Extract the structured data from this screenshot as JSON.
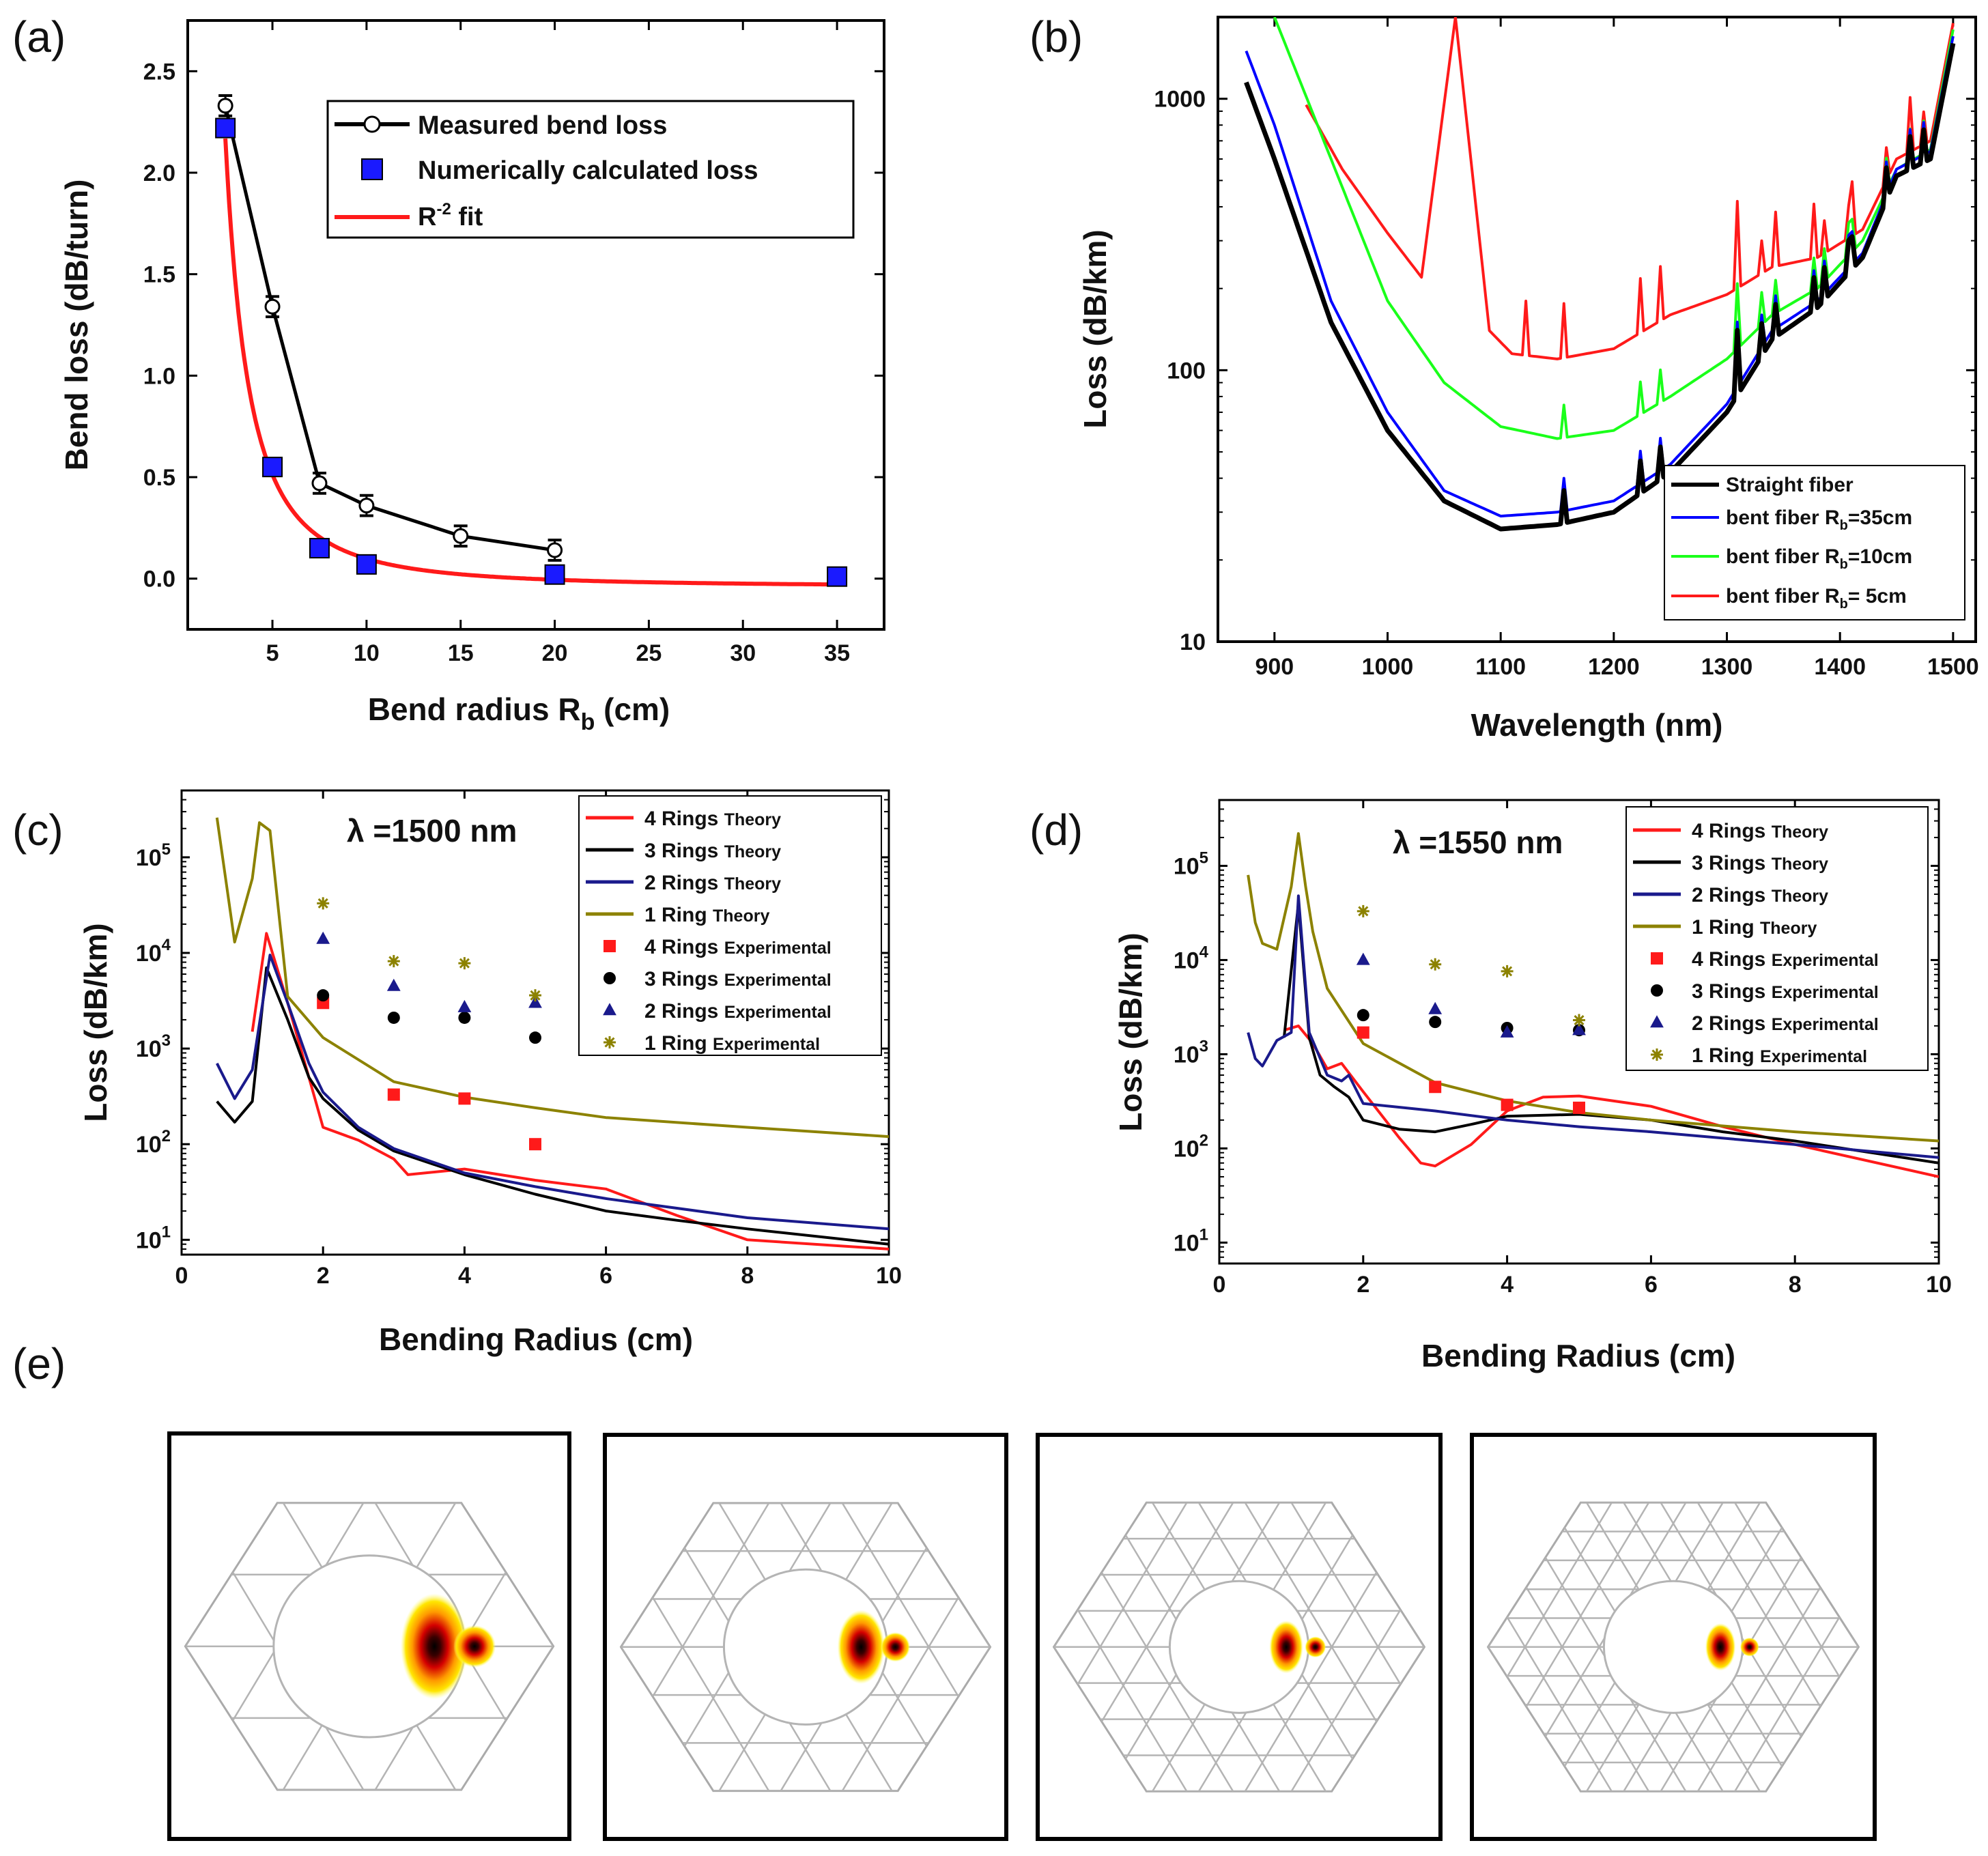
{
  "panel_labels": [
    "(a)",
    "(b)",
    "(c)",
    "(d)",
    "(e)"
  ],
  "colors": {
    "black": "#000000",
    "blue": "#0000ff",
    "red": "#ff1a1a",
    "green": "#1aff1a",
    "navy": "#1a1a8c",
    "olive": "#8c8200",
    "sq_blue": "#1a1aff"
  },
  "chart_data": [
    {
      "id": "a",
      "type": "line",
      "xlabel": "Bend radius R",
      "xlabel_sub": "b",
      "xlabel_unit": " (cm)",
      "ylabel": "Bend loss (dB/turn)",
      "xlim": [
        0.5,
        37.5
      ],
      "ylim": [
        -0.25,
        2.75
      ],
      "xticks": [
        5,
        10,
        15,
        20,
        25,
        30,
        35
      ],
      "yticks": [
        0.0,
        0.5,
        1.0,
        1.5,
        2.0,
        2.5
      ],
      "ytick_labels": [
        "0.0",
        "0.5",
        "1.0",
        "1.5",
        "2.0",
        "2.5"
      ],
      "legend": [
        {
          "label": "Measured bend loss",
          "kind": "line-marker"
        },
        {
          "label": "Numerically calculated loss",
          "kind": "square"
        },
        {
          "label": "R",
          "sup": "-2",
          "label_tail": " fit",
          "kind": "line"
        }
      ],
      "series": [
        {
          "name": "Measured bend loss",
          "x": [
            2.5,
            5,
            7.5,
            10,
            15,
            20
          ],
          "y": [
            2.33,
            1.34,
            0.47,
            0.36,
            0.21,
            0.14
          ],
          "err": [
            0.05,
            0.05,
            0.05,
            0.05,
            0.05,
            0.05
          ]
        },
        {
          "name": "Numerically calculated loss",
          "x": [
            2.5,
            5,
            7.5,
            10,
            20,
            35
          ],
          "y": [
            2.22,
            0.55,
            0.15,
            0.07,
            0.02,
            0.01
          ]
        },
        {
          "name": "R^-2 fit",
          "fn": "13.8/x^2 - 0.04",
          "x_range": [
            2.5,
            35
          ]
        }
      ]
    },
    {
      "id": "b",
      "type": "line",
      "yscale": "log",
      "xlabel": "Wavelength (nm)",
      "ylabel": "Loss (dB/km)",
      "xlim": [
        850,
        1520
      ],
      "ylim": [
        10,
        2000
      ],
      "xticks": [
        900,
        1000,
        1100,
        1200,
        1300,
        1400,
        1500
      ],
      "yticks": [
        10,
        100,
        1000
      ],
      "ytick_labels": [
        "10",
        "100",
        "1000"
      ],
      "legend": [
        {
          "label": "Straight fiber"
        },
        {
          "label": "bent fiber R",
          "sub": "b",
          "tail": "=35cm"
        },
        {
          "label": "bent fiber R",
          "sub": "b",
          "tail": "=10cm"
        },
        {
          "label": "bent fiber R",
          "sub": "b",
          "tail": "=  5cm"
        }
      ],
      "series": [
        {
          "name": "Straight fiber",
          "color_key": "black",
          "x": [
            875,
            900,
            950,
            1000,
            1050,
            1100,
            1150,
            1200,
            1250,
            1300,
            1340,
            1380,
            1420,
            1450,
            1480,
            1500
          ],
          "y": [
            1150,
            600,
            150,
            60,
            33,
            26,
            27,
            30,
            42,
            70,
            130,
            170,
            260,
            520,
            600,
            1600
          ]
        },
        {
          "name": "bent fiber Rb=35cm",
          "color_key": "blue",
          "x": [
            875,
            900,
            950,
            1000,
            1050,
            1100,
            1150,
            1200,
            1250,
            1300,
            1340,
            1380,
            1420,
            1450,
            1480,
            1500
          ],
          "y": [
            1500,
            800,
            180,
            70,
            36,
            29,
            30,
            33,
            45,
            75,
            140,
            180,
            270,
            550,
            640,
            1700
          ]
        },
        {
          "name": "bent fiber Rb=10cm",
          "color_key": "green",
          "x": [
            900,
            950,
            1000,
            1050,
            1100,
            1150,
            1200,
            1250,
            1300,
            1340,
            1380,
            1420,
            1450,
            1480,
            1500
          ],
          "y": [
            2000,
            600,
            180,
            90,
            62,
            56,
            60,
            80,
            110,
            160,
            200,
            300,
            550,
            650,
            1800
          ]
        },
        {
          "name": "bent fiber Rb=5cm",
          "color_key": "red",
          "x": [
            928,
            960,
            1000,
            1030,
            1060,
            1090,
            1110,
            1150,
            1200,
            1250,
            1300,
            1340,
            1380,
            1420,
            1450,
            1480,
            1500
          ],
          "y": [
            950,
            550,
            320,
            220,
            2000,
            140,
            115,
            110,
            120,
            160,
            190,
            240,
            260,
            330,
            600,
            700,
            1900
          ]
        }
      ]
    },
    {
      "id": "c",
      "type": "line",
      "yscale": "log",
      "xlabel": "Bending Radius (cm)",
      "ylabel": "Loss (dB/km)",
      "annotation": "λ =1500 nm",
      "xlim": [
        0,
        10
      ],
      "ylim": [
        7,
        500000
      ],
      "xticks": [
        0,
        2,
        4,
        6,
        8,
        10
      ],
      "yticks": [
        10,
        100,
        1000,
        10000,
        100000
      ],
      "ytick_exp": [
        "1",
        "2",
        "3",
        "4",
        "5"
      ],
      "legend": [
        {
          "label": "4 Rings",
          "small": "Theory",
          "kind": "line",
          "color_key": "red"
        },
        {
          "label": "3 Rings",
          "small": "Theory",
          "kind": "line",
          "color_key": "black"
        },
        {
          "label": "2 Rings",
          "small": "Theory",
          "kind": "line",
          "color_key": "navy"
        },
        {
          "label": "1 Ring",
          "small": "Theory",
          "kind": "line",
          "color_key": "olive"
        },
        {
          "label": "4 Rings",
          "small": "Experimental",
          "kind": "square",
          "color_key": "red"
        },
        {
          "label": "3 Rings",
          "small": "Experimental",
          "kind": "circle",
          "color_key": "black"
        },
        {
          "label": "2 Rings",
          "small": "Experimental",
          "kind": "triangle",
          "color_key": "navy"
        },
        {
          "label": "1 Ring ",
          "small": "Experimental",
          "kind": "star",
          "color_key": "olive"
        }
      ],
      "series": [
        {
          "name": "4 Rings Theory",
          "color_key": "red",
          "x": [
            1.0,
            1.2,
            1.5,
            1.8,
            2.0,
            2.5,
            3.0,
            3.2,
            4.0,
            5.0,
            6.0,
            7.0,
            8.0,
            10.0
          ],
          "y": [
            1500,
            16000,
            3000,
            500,
            150,
            110,
            70,
            48,
            55,
            42,
            34,
            18,
            10,
            8
          ]
        },
        {
          "name": "3 Rings Theory",
          "color_key": "black",
          "x": [
            0.5,
            0.75,
            1.0,
            1.2,
            1.5,
            1.8,
            2.0,
            2.5,
            3.0,
            4.0,
            5.0,
            6.0,
            7.0,
            8.0,
            10.0
          ],
          "y": [
            280,
            170,
            280,
            7000,
            2000,
            500,
            300,
            140,
            85,
            48,
            30,
            20,
            16,
            13,
            9
          ]
        },
        {
          "name": "2 Rings Theory",
          "color_key": "navy",
          "x": [
            0.5,
            0.75,
            1.0,
            1.25,
            1.5,
            1.8,
            2.0,
            2.5,
            3.0,
            4.0,
            5.0,
            6.0,
            8.0,
            10.0
          ],
          "y": [
            700,
            300,
            600,
            9500,
            3000,
            700,
            350,
            150,
            90,
            50,
            36,
            27,
            17,
            13
          ]
        },
        {
          "name": "1 Ring Theory",
          "color_key": "olive",
          "x": [
            0.5,
            0.75,
            1.0,
            1.1,
            1.25,
            1.5,
            2.0,
            3.0,
            4.0,
            5.0,
            6.0,
            8.0,
            10.0
          ],
          "y": [
            260000,
            13000,
            60000,
            230000,
            190000,
            3500,
            1300,
            450,
            310,
            240,
            190,
            150,
            120
          ]
        },
        {
          "name": "4 Rings Experimental",
          "color_key": "red",
          "marker": "square",
          "x": [
            2,
            3,
            4,
            5
          ],
          "y": [
            3000,
            330,
            300,
            100
          ]
        },
        {
          "name": "3 Rings Experimental",
          "color_key": "black",
          "marker": "circle",
          "x": [
            2,
            3,
            4,
            5
          ],
          "y": [
            3600,
            2100,
            2100,
            1300
          ]
        },
        {
          "name": "2 Rings Experimental",
          "color_key": "navy",
          "marker": "triangle",
          "x": [
            2,
            3,
            4,
            5
          ],
          "y": [
            14000,
            4500,
            2700,
            3000
          ]
        },
        {
          "name": "1 Ring Experimental",
          "color_key": "olive",
          "marker": "star",
          "x": [
            2,
            3,
            4,
            5
          ],
          "y": [
            33000,
            8200,
            7800,
            3600
          ]
        }
      ]
    },
    {
      "id": "d",
      "type": "line",
      "yscale": "log",
      "xlabel": "Bending Radius (cm)",
      "ylabel": "Loss (dB/km)",
      "annotation": "λ =1550 nm",
      "xlim": [
        0,
        10
      ],
      "ylim": [
        6,
        500000
      ],
      "xticks": [
        0,
        2,
        4,
        6,
        8,
        10
      ],
      "yticks": [
        10,
        100,
        1000,
        10000,
        100000
      ],
      "ytick_exp": [
        "1",
        "2",
        "3",
        "4",
        "5"
      ],
      "legend": [
        {
          "label": "4 Rings",
          "small": "Theory",
          "kind": "line",
          "color_key": "red"
        },
        {
          "label": "3 Rings",
          "small": "Theory",
          "kind": "line",
          "color_key": "black"
        },
        {
          "label": "2 Rings",
          "small": "Theory",
          "kind": "line",
          "color_key": "navy"
        },
        {
          "label": "1 Ring",
          "small": "Theory",
          "kind": "line",
          "color_key": "olive"
        },
        {
          "label": "4 Rings",
          "small": "Experimental",
          "kind": "square",
          "color_key": "red"
        },
        {
          "label": "3 Rings",
          "small": "Experimental",
          "kind": "circle",
          "color_key": "black"
        },
        {
          "label": "2 Rings",
          "small": "Experimental",
          "kind": "triangle",
          "color_key": "navy"
        },
        {
          "label": "1 Ring",
          "small": "Experimental",
          "kind": "star",
          "color_key": "olive"
        }
      ],
      "series": [
        {
          "name": "4 Rings Theory",
          "color_key": "red",
          "x": [
            0.9,
            1.1,
            1.3,
            1.5,
            1.7,
            2.0,
            2.5,
            2.8,
            3.0,
            3.5,
            4.0,
            4.5,
            5.0,
            6.0,
            7.0,
            8.0,
            10.0
          ],
          "y": [
            1800,
            2000,
            1300,
            700,
            800,
            400,
            130,
            70,
            65,
            110,
            250,
            350,
            360,
            280,
            170,
            110,
            50
          ]
        },
        {
          "name": "3 Rings Theory",
          "color_key": "black",
          "x": [
            0.9,
            1.1,
            1.25,
            1.4,
            1.6,
            1.8,
            2.0,
            2.5,
            3.0,
            3.5,
            4.0,
            5.0,
            6.0,
            7.0,
            8.0,
            10.0
          ],
          "y": [
            1500,
            40000,
            1500,
            600,
            450,
            350,
            200,
            160,
            150,
            180,
            220,
            230,
            200,
            150,
            120,
            70
          ]
        },
        {
          "name": "2 Rings Theory",
          "color_key": "navy",
          "x": [
            0.4,
            0.5,
            0.6,
            0.8,
            1.0,
            1.1,
            1.25,
            1.5,
            1.7,
            1.8,
            2.0,
            3.0,
            4.0,
            5.0,
            6.0,
            8.0,
            10.0
          ],
          "y": [
            1700,
            900,
            750,
            1400,
            1700,
            48000,
            1700,
            600,
            520,
            600,
            300,
            250,
            200,
            170,
            150,
            110,
            80
          ]
        },
        {
          "name": "1 Ring Theory",
          "color_key": "olive",
          "x": [
            0.4,
            0.5,
            0.6,
            0.8,
            1.0,
            1.1,
            1.2,
            1.3,
            1.5,
            2.0,
            3.0,
            4.0,
            5.0,
            6.0,
            8.0,
            10.0
          ],
          "y": [
            80000,
            25000,
            15000,
            13000,
            60000,
            220000,
            60000,
            20000,
            5000,
            1300,
            500,
            320,
            240,
            200,
            150,
            120
          ]
        },
        {
          "name": "4 Rings Experimental",
          "color_key": "red",
          "marker": "square",
          "x": [
            2,
            3,
            4,
            5
          ],
          "y": [
            1700,
            450,
            290,
            270
          ]
        },
        {
          "name": "3 Rings Experimental",
          "color_key": "black",
          "marker": "circle",
          "x": [
            2,
            3,
            4,
            5
          ],
          "y": [
            2600,
            2200,
            1900,
            1800
          ]
        },
        {
          "name": "2 Rings Experimental",
          "color_key": "navy",
          "marker": "triangle",
          "x": [
            2,
            3,
            4,
            5
          ],
          "y": [
            10000,
            3000,
            1700,
            1800
          ]
        },
        {
          "name": "1 Ring Experimental",
          "color_key": "olive",
          "marker": "star",
          "x": [
            2,
            3,
            4,
            5
          ],
          "y": [
            33000,
            9000,
            7600,
            2300
          ]
        }
      ]
    }
  ],
  "panel_e": {
    "frames": [
      {
        "rings": 1,
        "mode_ratio": 1.0
      },
      {
        "rings": 2,
        "mode_ratio": 0.7
      },
      {
        "rings": 3,
        "mode_ratio": 0.5
      },
      {
        "rings": 4,
        "mode_ratio": 0.45
      }
    ]
  }
}
